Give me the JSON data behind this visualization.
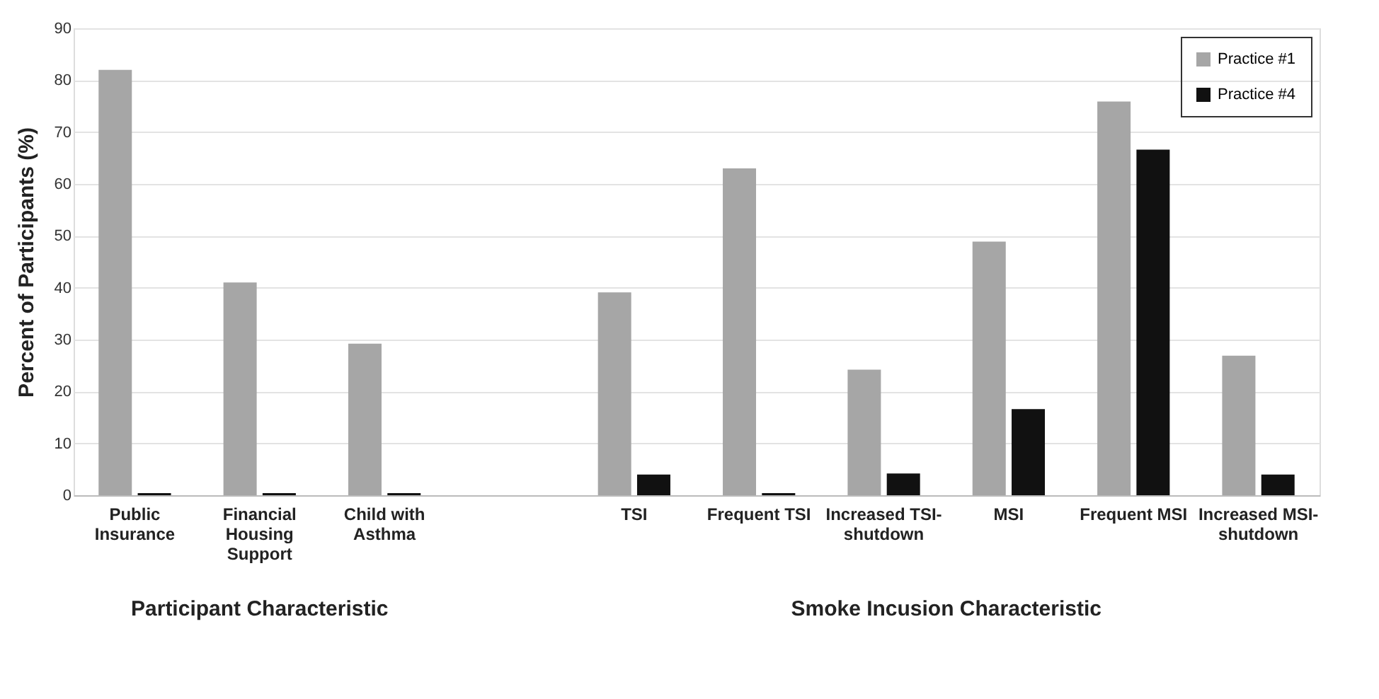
{
  "chart_data": {
    "type": "bar",
    "categories": [
      "Public Insurance",
      "Financial Housing Support",
      "Child with Asthma",
      null,
      "TSI",
      "Frequent TSI",
      "Increased TSI-shutdown",
      "MSI",
      "Frequent MSI",
      "Increased MSI-shutdown"
    ],
    "series": [
      {
        "name": "Practice #1",
        "color": "#a6a6a6",
        "values": [
          82,
          41,
          29.2,
          null,
          39.1,
          63,
          24.2,
          48.9,
          75.9,
          26.9
        ]
      },
      {
        "name": "Practice #4",
        "color": "#111111",
        "values": [
          0.4,
          0.4,
          0.4,
          null,
          4,
          0.4,
          4.2,
          16.6,
          66.6,
          4
        ]
      }
    ],
    "ylabel": "Percent of Participants (%)",
    "ylim": [
      0,
      90
    ],
    "yticks": [
      0,
      10,
      20,
      30,
      40,
      50,
      60,
      70,
      80,
      90
    ],
    "grid": "y",
    "legend": "top right",
    "annotations": [
      "Participant Characteristic",
      "Smoke Incusion Characteristic"
    ]
  }
}
